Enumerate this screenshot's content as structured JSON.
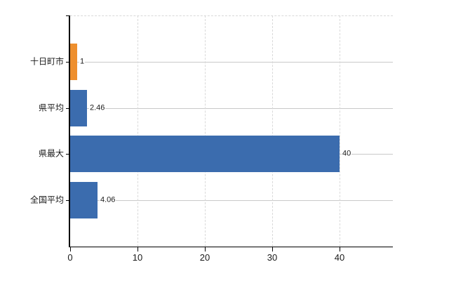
{
  "chart_data": {
    "type": "bar",
    "orientation": "horizontal",
    "categories": [
      "十日町市",
      "県平均",
      "県最大",
      "全国平均"
    ],
    "values": [
      1,
      2.46,
      40,
      4.06
    ],
    "value_labels": [
      "1",
      "2.46",
      "40",
      "4.06"
    ],
    "x_ticks": [
      0,
      10,
      20,
      30,
      40
    ],
    "x_tick_labels": [
      "0",
      "10",
      "20",
      "30",
      "40"
    ],
    "xlim": [
      0,
      47.9
    ],
    "grid": true,
    "legend_position": "none",
    "bar_colors": [
      "#ee8f2e",
      "#3b6cae",
      "#3b6cae",
      "#3b6cae"
    ],
    "colors": {
      "highlight_bar": "#ee8f2e",
      "default_bar": "#3b6cae",
      "horizontal_grid": "#c9c9c9",
      "vertical_grid": "#d9d9d9",
      "axis": "#000000",
      "text": "#1a1a1a"
    }
  }
}
